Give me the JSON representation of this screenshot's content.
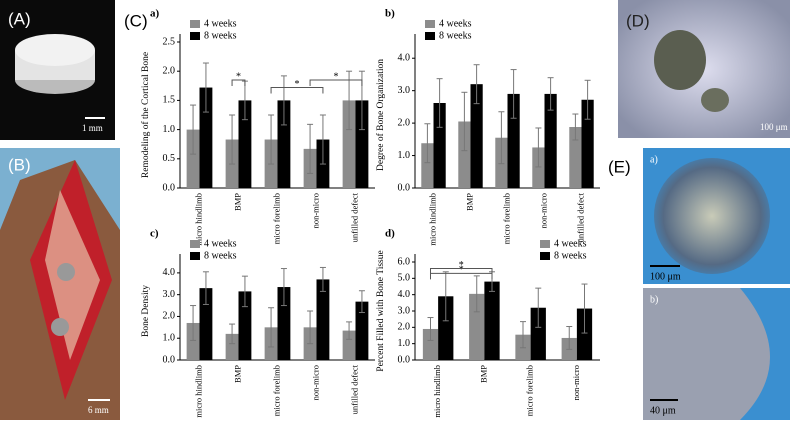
{
  "panels": {
    "a": {
      "label": "(A)",
      "scale": "1 mm"
    },
    "b": {
      "label": "(B)",
      "scale": "6 mm"
    },
    "c": {
      "label": "(C)"
    },
    "d": {
      "label": "(D)",
      "scale": "100 μm"
    },
    "e": {
      "label": "(E)",
      "sub_a": "a)",
      "scale_a": "100 μm",
      "sub_b": "b)",
      "scale_b": "40 μm"
    }
  },
  "chart_data": [
    {
      "type": "bar",
      "title": "a)",
      "y_label": "Remodeling of the Cortical Bone",
      "categories": [
        "micro hindlimb",
        "BMP",
        "micro forelimb",
        "non-micro",
        "unfilled defect"
      ],
      "series": [
        {
          "name": "4 weeks",
          "color": "#8c8c8c",
          "values": [
            1.0,
            0.83,
            0.83,
            0.67,
            1.5
          ],
          "errors": [
            0.42,
            0.42,
            0.42,
            0.42,
            0.5
          ]
        },
        {
          "name": "8 weeks",
          "color": "#000000",
          "values": [
            1.72,
            1.5,
            1.5,
            0.83,
            1.5
          ],
          "errors": [
            0.42,
            0.33,
            0.42,
            0.42,
            0.5
          ]
        }
      ],
      "ylim": [
        0,
        2.5
      ],
      "yticks": [
        {
          "value": 0,
          "label": "0.0"
        },
        0.5,
        {
          "value": 1,
          "label": "1.0"
        },
        1.5,
        {
          "value": 2,
          "label": "2.0"
        },
        2.5
      ],
      "legend": "upper left",
      "annotations": [
        "*",
        "*",
        "*"
      ]
    },
    {
      "type": "bar",
      "title": "b)",
      "y_label": "Degree of Bone Organization",
      "categories": [
        "micro hindlimb",
        "BMP",
        "micro forelimb",
        "non-micro",
        "unfilled defect"
      ],
      "series": [
        {
          "name": "4 weeks",
          "color": "#8c8c8c",
          "values": [
            1.38,
            2.05,
            1.55,
            1.25,
            1.88
          ],
          "errors": [
            0.6,
            0.9,
            0.8,
            0.6,
            0.4
          ]
        },
        {
          "name": "8 weeks",
          "color": "#000000",
          "values": [
            2.62,
            3.2,
            2.9,
            2.9,
            2.72
          ],
          "errors": [
            0.75,
            0.6,
            0.75,
            0.5,
            0.6
          ]
        }
      ],
      "ylim": [
        0,
        4.5
      ],
      "yticks": [
        {
          "value": 0,
          "label": "0.0"
        },
        {
          "value": 1,
          "label": "1.0"
        },
        {
          "value": 2,
          "label": "2.0"
        },
        {
          "value": 3,
          "label": "3.0"
        },
        {
          "value": 4,
          "label": "4.0"
        }
      ],
      "legend": "upper left"
    },
    {
      "type": "bar",
      "title": "c)",
      "y_label": "Bone Density",
      "categories": [
        "micro hindlimb",
        "BMP",
        "micro forelimb",
        "non-micro",
        "unfilled defect"
      ],
      "series": [
        {
          "name": "4 weeks",
          "color": "#8c8c8c",
          "values": [
            1.7,
            1.2,
            1.5,
            1.5,
            1.35
          ],
          "errors": [
            0.8,
            0.45,
            0.9,
            0.75,
            0.4
          ]
        },
        {
          "name": "8 weeks",
          "color": "#000000",
          "values": [
            3.3,
            3.15,
            3.35,
            3.7,
            2.68
          ],
          "errors": [
            0.75,
            0.7,
            0.85,
            0.55,
            0.5
          ]
        }
      ],
      "ylim": [
        0,
        4.5
      ],
      "yticks": [
        {
          "value": 0,
          "label": "0.0"
        },
        {
          "value": 1,
          "label": "1.0"
        },
        {
          "value": 2,
          "label": "2.0"
        },
        {
          "value": 3,
          "label": "3.0"
        },
        {
          "value": 4,
          "label": "4.0"
        }
      ],
      "legend": "upper left"
    },
    {
      "type": "bar",
      "title": "d)",
      "y_label": "Percent Filled with Bone Tissue",
      "categories": [
        "micro hindlimb",
        "BMP",
        "micro forelimb",
        "non-micro"
      ],
      "series": [
        {
          "name": "4 weeks",
          "color": "#8c8c8c",
          "values": [
            1.9,
            4.05,
            1.55,
            1.35
          ],
          "errors": [
            0.7,
            1.1,
            0.8,
            0.7
          ]
        },
        {
          "name": "8 weeks",
          "color": "#000000",
          "values": [
            3.9,
            4.8,
            3.2,
            3.15
          ],
          "errors": [
            1.5,
            0.6,
            1.2,
            1.5
          ]
        }
      ],
      "ylim": [
        0,
        6
      ],
      "yticks": [
        {
          "value": 0,
          "label": "0.0"
        },
        {
          "value": 1,
          "label": "1.0"
        },
        {
          "value": 2,
          "label": "2.0"
        },
        {
          "value": 3,
          "label": "3.0"
        },
        {
          "value": 4,
          "label": "4.0"
        },
        {
          "value": 5,
          "label": "5.0"
        },
        {
          "value": 6,
          "label": "6.0"
        }
      ],
      "legend": "upper right",
      "annotations": [
        "*",
        "*"
      ]
    }
  ]
}
